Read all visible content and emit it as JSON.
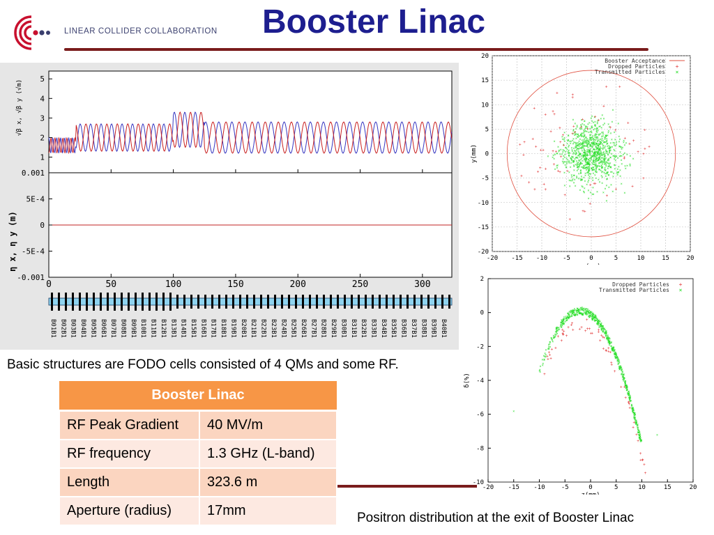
{
  "header": {
    "org_name": "LINEAR COLLIDER COLLABORATION",
    "title": "Booster Linac",
    "accent_color": "#1d1e8f",
    "logo_color": "#c8102e"
  },
  "optics_plot": {
    "top_axis": {
      "ticks": [
        "5",
        "4",
        "3",
        "2",
        "1"
      ],
      "ylabel": "√β x, √β y (√m)"
    },
    "bottom_axis": {
      "ticks": [
        "0.001",
        "5E-4",
        "0",
        "-5E-4",
        "-0.001"
      ],
      "ylabel": "η x, η y (m)"
    },
    "x_ticks": [
      "0",
      "50",
      "100",
      "150",
      "200",
      "250",
      "300"
    ],
    "element_labels": [
      "B01B1",
      "B02B1",
      "B03B1",
      "B04B1",
      "B05B1",
      "B06B1",
      "B07B1",
      "B08B1",
      "B09B1",
      "B10B1",
      "B11B1",
      "B12B1",
      "B13B1",
      "B14B1",
      "B15B1",
      "B16B1",
      "B17B1",
      "B18B1",
      "B19B1",
      "B20B1",
      "B21B1",
      "B22B1",
      "B23B1",
      "B24B1",
      "B25B1",
      "B26B1",
      "B27B1",
      "B28B1",
      "B29B1",
      "B30B1",
      "B31B1",
      "B32B1",
      "B33B1",
      "B34B1",
      "B35B1",
      "B36B1",
      "B37B1",
      "B38B1",
      "B39B1",
      "B40B1"
    ]
  },
  "xy_plot": {
    "legend": [
      "Booster Acceptance",
      "Dropped Particles",
      "Transmitted Particles"
    ],
    "xlabel": "x(mm)",
    "ylabel": "y(mm)",
    "x_ticks": [
      "-20",
      "-15",
      "-10",
      "-5",
      "0",
      "5",
      "10",
      "15",
      "20"
    ],
    "y_ticks": [
      "20",
      "15",
      "10",
      "5",
      "0",
      "-5",
      "-10",
      "-15",
      "-20"
    ],
    "acceptance_radius_mm": 17
  },
  "zd_plot": {
    "legend": [
      "Dropped Particles",
      "Transmitted Particles"
    ],
    "xlabel": "z(mm)",
    "ylabel": "δ(%)",
    "x_ticks": [
      "-20",
      "-15",
      "-10",
      "-5",
      "0",
      "5",
      "10",
      "15",
      "20"
    ],
    "y_ticks": [
      "2",
      "0",
      "-2",
      "-4",
      "-6",
      "-8",
      "-10"
    ]
  },
  "caption_left": "Basic structures are FODO cells consisted of 4 QMs and some RF.",
  "caption_right": "Positron distribution at the exit of Booster Linac",
  "params_table": {
    "header": "Booster Linac",
    "rows": [
      {
        "label": "RF Peak Gradient",
        "value": "40 MV/m"
      },
      {
        "label": "RF frequency",
        "value": "1.3 GHz (L-band)"
      },
      {
        "label": "Length",
        "value": "323.6 m"
      },
      {
        "label": "Aperture (radius)",
        "value": "17mm"
      }
    ]
  }
}
